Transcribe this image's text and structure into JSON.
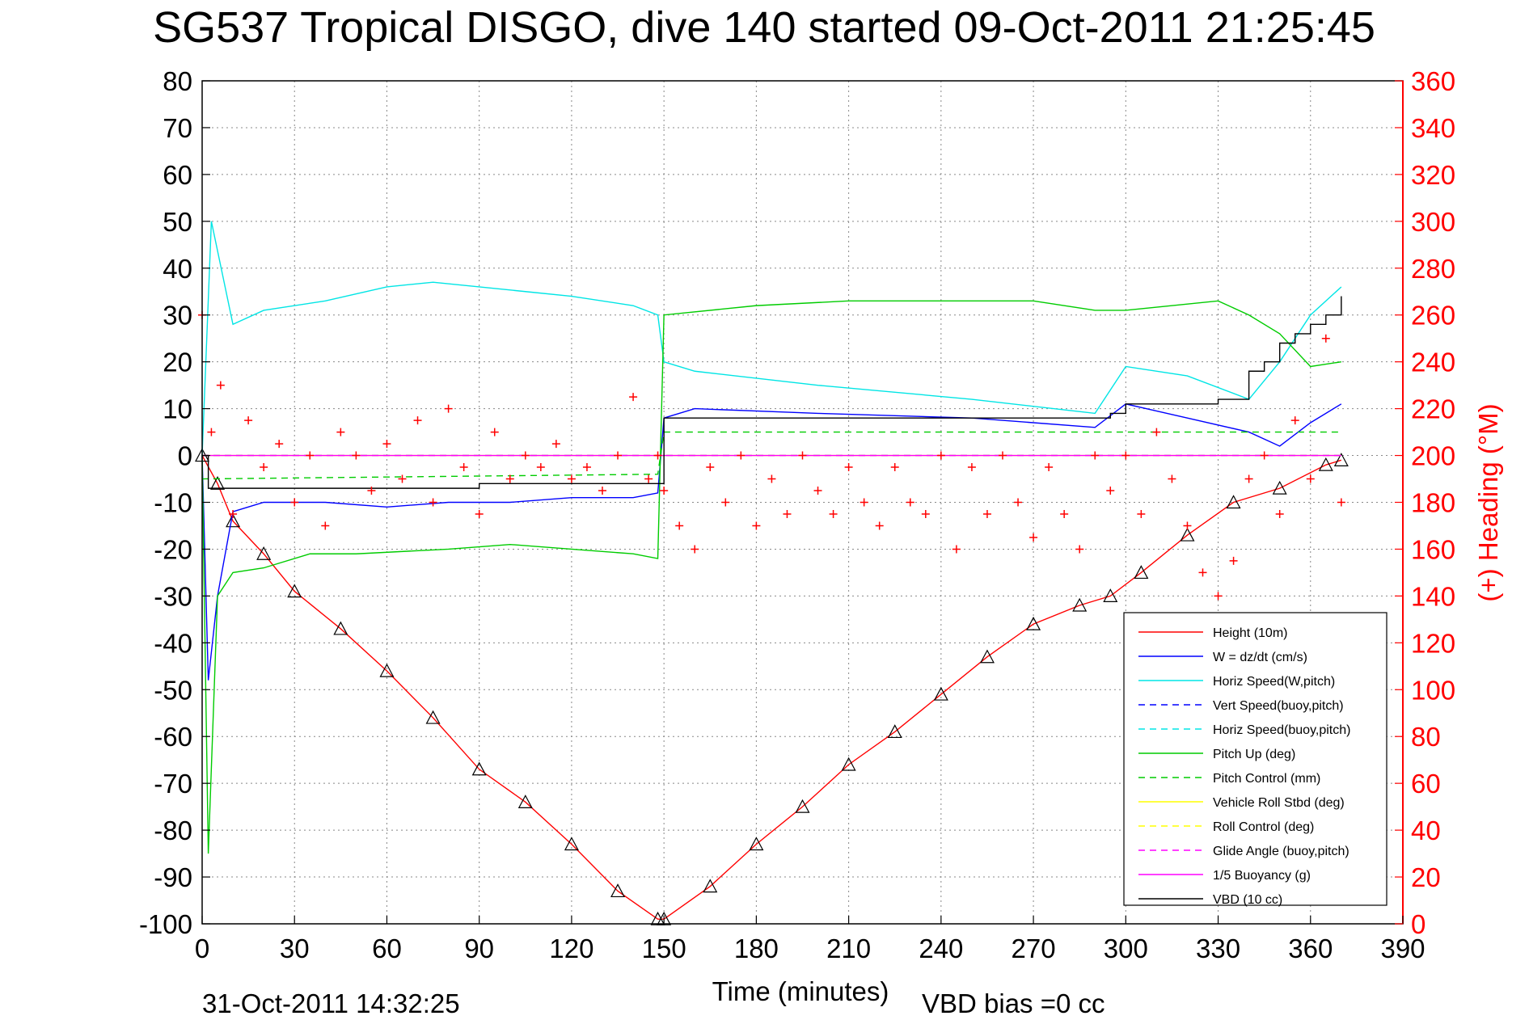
{
  "title": "SG537 Tropical DISGO, dive 140 started 09-Oct-2011 21:25:45",
  "footer_left": "31-Oct-2011 14:32:25",
  "footer_vbd": "VBD bias =0 cc",
  "chart_data": {
    "type": "line",
    "xlabel": "Time (minutes)",
    "ylabel_right": "(+) Heading (°M)",
    "xlim": [
      0,
      390
    ],
    "ylim_left": [
      -100,
      80
    ],
    "ylim_right": [
      0,
      360
    ],
    "x_ticks": [
      0,
      30,
      60,
      90,
      120,
      150,
      180,
      210,
      240,
      270,
      300,
      330,
      360,
      390
    ],
    "y_left_ticks": [
      80,
      70,
      60,
      50,
      40,
      30,
      20,
      10,
      0,
      -10,
      -20,
      -30,
      -40,
      -50,
      -60,
      -70,
      -80,
      -90,
      -100
    ],
    "y_right_ticks": [
      360,
      340,
      320,
      300,
      280,
      260,
      240,
      220,
      200,
      180,
      160,
      140,
      120,
      100,
      80,
      60,
      40,
      20,
      0
    ],
    "grid": true,
    "legend_position": "bottom-right",
    "series": [
      {
        "name": "Height (10m)",
        "color": "#ff0000",
        "style": "solid",
        "marker": "triangle",
        "x": [
          0,
          5,
          10,
          20,
          30,
          45,
          60,
          75,
          90,
          105,
          120,
          135,
          148,
          150,
          165,
          180,
          195,
          210,
          225,
          240,
          255,
          270,
          285,
          295,
          305,
          320,
          335,
          350,
          365,
          370
        ],
        "y": [
          0,
          -6,
          -14,
          -21,
          -29,
          -37,
          -46,
          -56,
          -67,
          -74,
          -83,
          -93,
          -99,
          -99,
          -92,
          -83,
          -75,
          -66,
          -59,
          -51,
          -43,
          -36,
          -32,
          -30,
          -25,
          -17,
          -10,
          -7,
          -2,
          -1
        ]
      },
      {
        "name": "W = dz/dt (cm/s)",
        "color": "#0000ff",
        "style": "solid",
        "x": [
          0,
          2,
          5,
          10,
          20,
          40,
          60,
          80,
          100,
          120,
          140,
          148,
          150,
          160,
          200,
          250,
          290,
          300,
          320,
          340,
          350,
          360,
          370
        ],
        "y": [
          0,
          -48,
          -30,
          -12,
          -10,
          -10,
          -11,
          -10,
          -10,
          -9,
          -9,
          -8,
          8,
          10,
          9,
          8,
          6,
          11,
          8,
          5,
          2,
          7,
          11
        ]
      },
      {
        "name": "Horiz Speed(W,pitch)",
        "color": "#00e5e5",
        "style": "solid",
        "x": [
          0,
          3,
          10,
          20,
          40,
          60,
          75,
          90,
          105,
          120,
          140,
          148,
          150,
          160,
          200,
          250,
          290,
          300,
          320,
          340,
          350,
          360,
          370
        ],
        "y": [
          0,
          50,
          28,
          31,
          33,
          36,
          37,
          36,
          35,
          34,
          32,
          30,
          20,
          18,
          15,
          12,
          9,
          19,
          17,
          12,
          20,
          30,
          36
        ]
      },
      {
        "name": "Vert Speed(buoy,pitch)",
        "color": "#0000ff",
        "style": "dashed",
        "x": [
          0,
          370
        ],
        "y": [
          0,
          0
        ]
      },
      {
        "name": "Horiz Speed(buoy,pitch)",
        "color": "#00e5e5",
        "style": "dashed",
        "x": [
          0,
          370
        ],
        "y": [
          0,
          0
        ]
      },
      {
        "name": "Pitch Up (deg)",
        "color": "#00cc00",
        "style": "solid",
        "x": [
          0,
          2,
          5,
          10,
          20,
          35,
          50,
          80,
          100,
          120,
          140,
          148,
          150,
          180,
          210,
          240,
          270,
          290,
          300,
          330,
          340,
          350,
          360,
          370
        ],
        "y": [
          0,
          -85,
          -30,
          -25,
          -24,
          -21,
          -21,
          -20,
          -19,
          -20,
          -21,
          -22,
          30,
          32,
          33,
          33,
          33,
          31,
          31,
          33,
          30,
          26,
          19,
          20
        ]
      },
      {
        "name": "Pitch Control (mm)",
        "color": "#00cc00",
        "style": "dashed",
        "x": [
          0,
          148,
          150,
          370
        ],
        "y": [
          -5,
          -4,
          5,
          5
        ]
      },
      {
        "name": "Vehicle Roll Stbd (deg)",
        "color": "#ffff00",
        "style": "solid",
        "x": [
          0,
          370
        ],
        "y": [
          0,
          0
        ]
      },
      {
        "name": "Roll Control (deg)",
        "color": "#ffff00",
        "style": "dashed",
        "x": [
          0,
          370
        ],
        "y": [
          0,
          0
        ]
      },
      {
        "name": "Glide Angle (buoy,pitch)",
        "color": "#ff00ff",
        "style": "dashed",
        "x": [
          0,
          370
        ],
        "y": [
          0,
          0
        ]
      },
      {
        "name": "1/5 Buoyancy (g)",
        "color": "#ff00ff",
        "style": "solid",
        "x": [
          0,
          370
        ],
        "y": [
          0,
          0
        ]
      },
      {
        "name": "VBD (10 cc)",
        "color": "#000000",
        "style": "solid",
        "step": true,
        "x": [
          0,
          2,
          10,
          30,
          60,
          90,
          120,
          148,
          150,
          200,
          250,
          295,
          300,
          330,
          340,
          345,
          350,
          355,
          360,
          365,
          370
        ],
        "y": [
          0,
          -7,
          -7,
          -7,
          -7,
          -6,
          -6,
          -6,
          8,
          8,
          8,
          9,
          11,
          12,
          18,
          20,
          24,
          26,
          28,
          30,
          34
        ]
      }
    ],
    "heading": {
      "name": "Heading",
      "color": "#ff0000",
      "marker": "+",
      "axis": "right",
      "x": [
        0,
        3,
        6,
        10,
        15,
        20,
        25,
        30,
        35,
        40,
        45,
        50,
        55,
        60,
        65,
        70,
        75,
        80,
        85,
        90,
        95,
        100,
        105,
        110,
        115,
        120,
        125,
        130,
        135,
        140,
        145,
        148,
        150,
        155,
        160,
        165,
        170,
        175,
        180,
        185,
        190,
        195,
        200,
        205,
        210,
        215,
        220,
        225,
        230,
        235,
        240,
        245,
        250,
        255,
        260,
        265,
        270,
        275,
        280,
        285,
        290,
        295,
        300,
        305,
        310,
        315,
        320,
        325,
        330,
        335,
        340,
        345,
        350,
        355,
        360,
        365,
        370
      ],
      "y": [
        260,
        210,
        230,
        175,
        215,
        195,
        205,
        180,
        200,
        170,
        210,
        200,
        185,
        205,
        190,
        215,
        180,
        220,
        195,
        175,
        210,
        190,
        200,
        195,
        205,
        190,
        195,
        185,
        200,
        225,
        190,
        200,
        185,
        170,
        160,
        195,
        180,
        200,
        170,
        190,
        175,
        200,
        185,
        175,
        195,
        180,
        170,
        195,
        180,
        175,
        200,
        160,
        195,
        175,
        200,
        180,
        165,
        195,
        175,
        160,
        200,
        185,
        200,
        175,
        210,
        190,
        170,
        150,
        140,
        155,
        190,
        200,
        175,
        215,
        190,
        250,
        180
      ]
    }
  }
}
